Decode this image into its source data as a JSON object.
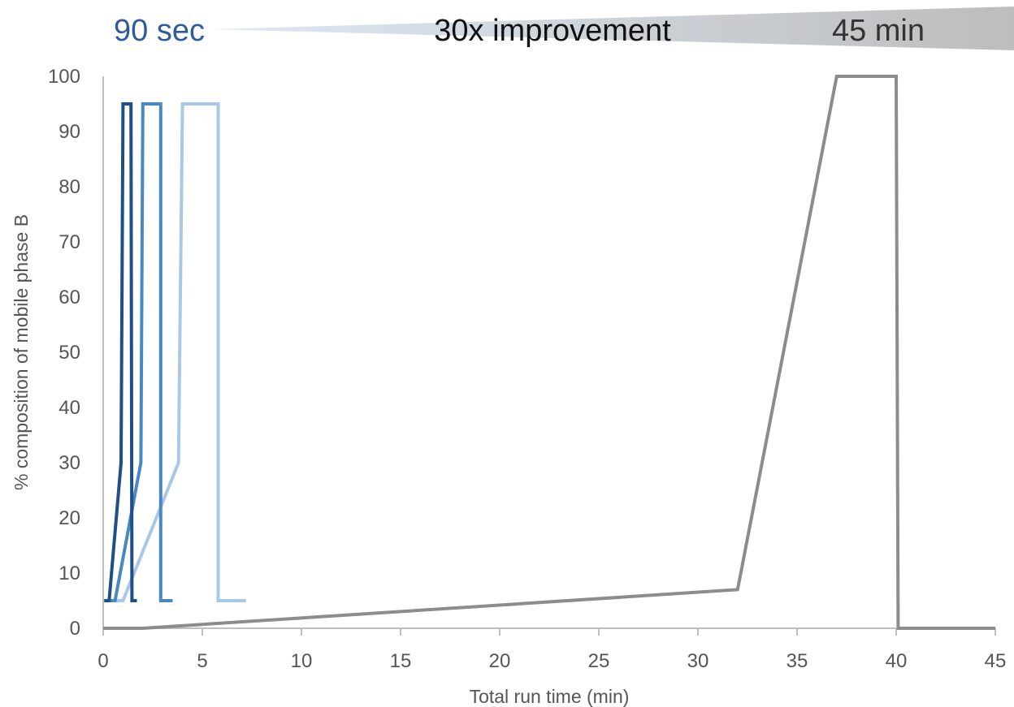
{
  "banner": {
    "left_label": "90 sec",
    "center_label": "30x improvement",
    "right_label": "45 min",
    "left_color": "#2f5b9a",
    "gradient_start": "#dde8f5",
    "gradient_end": "#bdbdbd"
  },
  "chart_data": {
    "type": "line",
    "title": "",
    "xlabel": "Total run time (min)",
    "ylabel": "% composition of mobile phase B",
    "xlim": [
      0,
      45
    ],
    "ylim": [
      0,
      100
    ],
    "xticks": [
      0,
      5,
      10,
      15,
      20,
      25,
      30,
      35,
      40,
      45
    ],
    "yticks": [
      0,
      10,
      20,
      30,
      40,
      50,
      60,
      70,
      80,
      90,
      100
    ],
    "grid": false,
    "legend": "none",
    "series": [
      {
        "color": "#8c8c8c",
        "points": [
          [
            0,
            0
          ],
          [
            2,
            0
          ],
          [
            32,
            7
          ],
          [
            37,
            100
          ],
          [
            40,
            100
          ],
          [
            40.1,
            0
          ],
          [
            45,
            0
          ]
        ]
      },
      {
        "color": "#a9c7e6",
        "points": [
          [
            0.6,
            5
          ],
          [
            1,
            5
          ],
          [
            3.8,
            30
          ],
          [
            4,
            95
          ],
          [
            5.8,
            95
          ],
          [
            5.8,
            5
          ],
          [
            7.2,
            5
          ]
        ]
      },
      {
        "color": "#4a88c2",
        "points": [
          [
            0.3,
            5
          ],
          [
            0.6,
            5
          ],
          [
            1.9,
            30
          ],
          [
            2,
            95
          ],
          [
            2.9,
            95
          ],
          [
            2.9,
            5
          ],
          [
            3.5,
            5
          ]
        ]
      },
      {
        "color": "#1f4f86",
        "points": [
          [
            0.05,
            5
          ],
          [
            0.3,
            5
          ],
          [
            0.9,
            30
          ],
          [
            1,
            95
          ],
          [
            1.4,
            95
          ],
          [
            1.45,
            5
          ],
          [
            1.7,
            5
          ]
        ]
      }
    ]
  }
}
